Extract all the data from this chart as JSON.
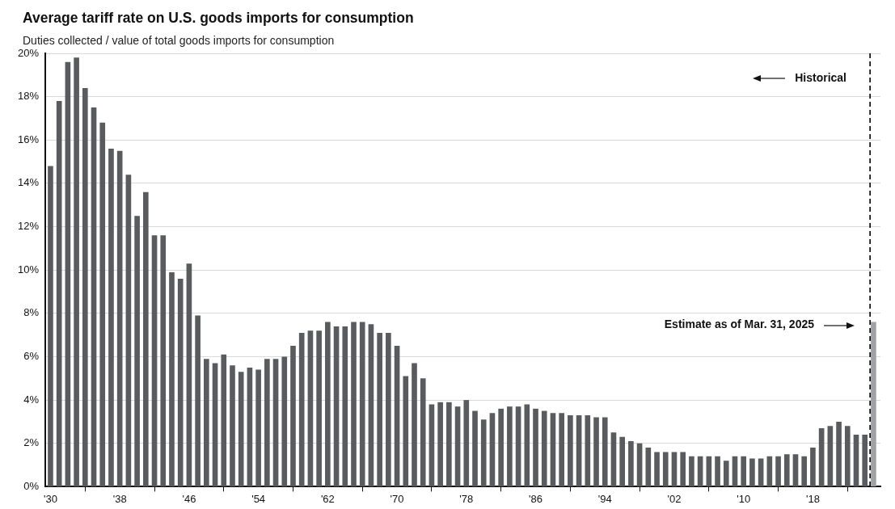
{
  "chart_data": {
    "type": "bar",
    "title": "Average tariff rate on U.S. goods imports for consumption",
    "subtitle": "Duties collected / value of total goods imports for consumption",
    "x": [
      1930,
      1931,
      1932,
      1933,
      1934,
      1935,
      1936,
      1937,
      1938,
      1939,
      1940,
      1941,
      1942,
      1943,
      1944,
      1945,
      1946,
      1947,
      1948,
      1949,
      1950,
      1951,
      1952,
      1953,
      1954,
      1955,
      1956,
      1957,
      1958,
      1959,
      1960,
      1961,
      1962,
      1963,
      1964,
      1965,
      1966,
      1967,
      1968,
      1969,
      1970,
      1971,
      1972,
      1973,
      1974,
      1975,
      1976,
      1977,
      1978,
      1979,
      1980,
      1981,
      1982,
      1983,
      1984,
      1985,
      1986,
      1987,
      1988,
      1989,
      1990,
      1991,
      1992,
      1993,
      1994,
      1995,
      1996,
      1997,
      1998,
      1999,
      2000,
      2001,
      2002,
      2003,
      2004,
      2005,
      2006,
      2007,
      2008,
      2009,
      2010,
      2011,
      2012,
      2013,
      2014,
      2015,
      2016,
      2017,
      2018,
      2019,
      2020,
      2021,
      2022,
      2023,
      2024
    ],
    "series": [
      {
        "color": "#595b5e",
        "values": [
          14.8,
          17.8,
          19.6,
          19.8,
          18.4,
          17.5,
          16.8,
          15.6,
          15.5,
          14.4,
          12.5,
          13.6,
          11.6,
          11.6,
          9.9,
          9.6,
          10.3,
          7.9,
          5.9,
          5.7,
          6.1,
          5.6,
          5.3,
          5.5,
          5.4,
          5.9,
          5.9,
          6.0,
          6.5,
          7.1,
          7.2,
          7.2,
          7.6,
          7.4,
          7.4,
          7.6,
          7.6,
          7.5,
          7.1,
          7.1,
          6.5,
          5.1,
          5.7,
          5.0,
          3.8,
          3.9,
          3.9,
          3.7,
          4.0,
          3.5,
          3.1,
          3.4,
          3.6,
          3.7,
          3.7,
          3.8,
          3.6,
          3.5,
          3.4,
          3.4,
          3.3,
          3.3,
          3.3,
          3.2,
          3.2,
          2.5,
          2.3,
          2.1,
          2.0,
          1.8,
          1.6,
          1.6,
          1.6,
          1.6,
          1.4,
          1.4,
          1.4,
          1.4,
          1.2,
          1.4,
          1.4,
          1.3,
          1.3,
          1.4,
          1.4,
          1.5,
          1.5,
          1.4,
          1.8,
          2.7,
          2.8,
          3.0,
          2.8,
          2.4,
          2.4
        ]
      },
      {
        "color": "#a0a2a5",
        "x": [
          2025
        ],
        "values": [
          7.6
        ]
      }
    ],
    "xlim": [
      1929.4,
      2025.8
    ],
    "xticks": [
      {
        "value": 1930,
        "label": "'30"
      },
      {
        "value": 1938,
        "label": "'38"
      },
      {
        "value": 1946,
        "label": "'46"
      },
      {
        "value": 1954,
        "label": "'54"
      },
      {
        "value": 1962,
        "label": "'62"
      },
      {
        "value": 1970,
        "label": "'70"
      },
      {
        "value": 1978,
        "label": "'78"
      },
      {
        "value": 1986,
        "label": "'86"
      },
      {
        "value": 1994,
        "label": "'94"
      },
      {
        "value": 2002,
        "label": "'02"
      },
      {
        "value": 2010,
        "label": "'10"
      },
      {
        "value": 2018,
        "label": "'18"
      }
    ],
    "ylim": [
      0,
      20
    ],
    "yticks": [
      {
        "value": 0,
        "label": "0%"
      },
      {
        "value": 2,
        "label": "2%"
      },
      {
        "value": 4,
        "label": "4%"
      },
      {
        "value": 6,
        "label": "6%"
      },
      {
        "value": 8,
        "label": "8%"
      },
      {
        "value": 10,
        "label": "10%"
      },
      {
        "value": 12,
        "label": "12%"
      },
      {
        "value": 14,
        "label": "14%"
      },
      {
        "value": 16,
        "label": "16%"
      },
      {
        "value": 18,
        "label": "18%"
      },
      {
        "value": 20,
        "label": "20%"
      }
    ],
    "grid": "y",
    "ref_lines": [
      {
        "axis": "x",
        "value": 2024.6,
        "color": "#000000",
        "line_style": "dashed"
      }
    ],
    "annotations": [
      "Historical",
      "Estimate as of Mar. 31, 2025"
    ]
  }
}
